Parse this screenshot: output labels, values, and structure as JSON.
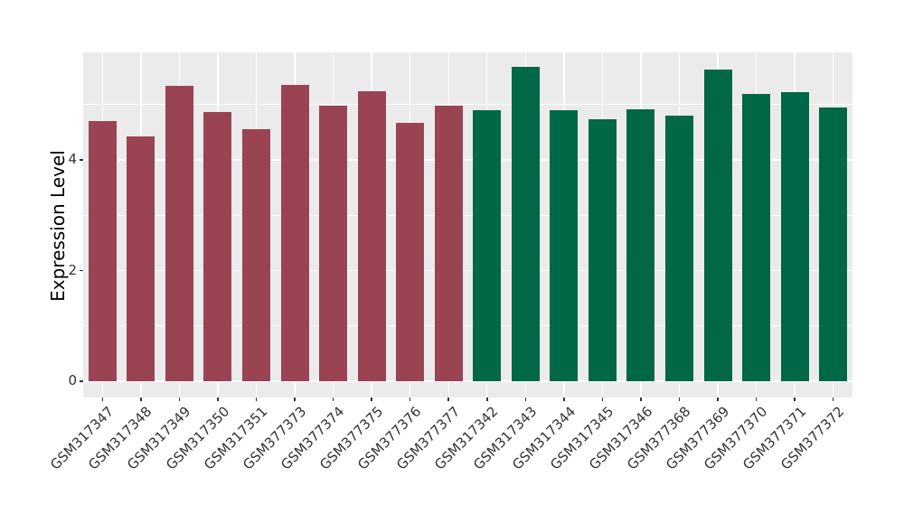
{
  "chart_data": {
    "type": "bar",
    "title": "",
    "xlabel": "",
    "ylabel": "Expression Level",
    "legend_position": "none",
    "grid": true,
    "panel_bg": "#EBEBEB",
    "grid_color": "#FFFFFF",
    "tick_label_color": "#333333",
    "ylim": [
      0,
      5.95
    ],
    "yticks": [
      0,
      2,
      4
    ],
    "yticks_minor": [
      1,
      3,
      5
    ],
    "categories": [
      "GSM317347",
      "GSM317348",
      "GSM317349",
      "GSM317350",
      "GSM317351",
      "GSM377373",
      "GSM377374",
      "GSM377375",
      "GSM377376",
      "GSM377377",
      "GSM317342",
      "GSM317343",
      "GSM317344",
      "GSM317345",
      "GSM317346",
      "GSM377368",
      "GSM377369",
      "GSM377370",
      "GSM377371",
      "GSM377372"
    ],
    "values": [
      4.7,
      4.43,
      5.34,
      4.86,
      4.56,
      5.36,
      4.98,
      5.24,
      4.67,
      4.98,
      4.9,
      5.68,
      4.9,
      4.74,
      4.91,
      4.8,
      5.63,
      5.19,
      5.23,
      4.94
    ],
    "groups": [
      "group1",
      "group1",
      "group1",
      "group1",
      "group1",
      "group1",
      "group1",
      "group1",
      "group1",
      "group1",
      "group2",
      "group2",
      "group2",
      "group2",
      "group2",
      "group2",
      "group2",
      "group2",
      "group2",
      "group2"
    ],
    "group_colors": {
      "group1": "#9A4453",
      "group2": "#006747"
    }
  }
}
